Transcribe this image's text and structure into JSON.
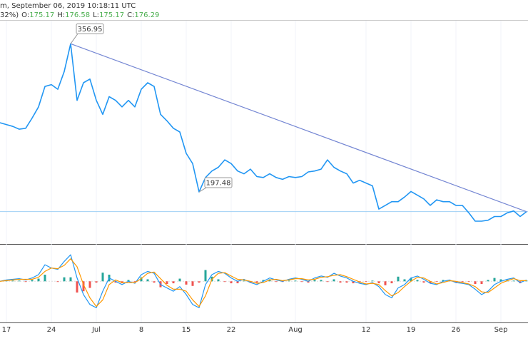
{
  "chart_data": {
    "type": "line",
    "header": {
      "line1": "m, September 06, 2019 10:18:11 UTC",
      "line2_prefix": "32%)",
      "ohlc": [
        {
          "label": "O:",
          "value": "175.17"
        },
        {
          "label": "H:",
          "value": "176.58"
        },
        {
          "label": "L:",
          "value": "175.17"
        },
        {
          "label": "C:",
          "value": "176.29"
        }
      ],
      "ohlc_color": "#4caf50"
    },
    "categories": [
      null,
      "17",
      null,
      null,
      null,
      null,
      null,
      null,
      "24",
      null,
      null,
      null,
      null,
      null,
      null,
      "Jul",
      null,
      null,
      null,
      null,
      null,
      null,
      "8",
      null,
      null,
      null,
      null,
      null,
      null,
      "15",
      null,
      null,
      null,
      null,
      null,
      null,
      "22",
      null,
      null,
      null,
      null,
      null,
      null,
      null,
      null,
      null,
      "Aug",
      null,
      null,
      null,
      null,
      null,
      null,
      null,
      null,
      null,
      null,
      "12",
      null,
      null,
      null,
      null,
      null,
      null,
      "19",
      null,
      null,
      null,
      null,
      null,
      null,
      "26",
      null,
      null,
      null,
      null,
      null,
      null,
      "Sep",
      null,
      null,
      null,
      null
    ],
    "series": [
      {
        "color": "#2196f3",
        "values": [
          272,
          270,
          268,
          265,
          266,
          277,
          289,
          311,
          313,
          308,
          327,
          356.95,
          296,
          315,
          319,
          296,
          281,
          300,
          296,
          289,
          296,
          289,
          308,
          315,
          311,
          281,
          274,
          266,
          262,
          239,
          228,
          197.48,
          213,
          220,
          224,
          232,
          228,
          220,
          217,
          222,
          214,
          213,
          217,
          213,
          211,
          214,
          213,
          214,
          219,
          220,
          222,
          232,
          224,
          220,
          217,
          207,
          210,
          207,
          204,
          179,
          183,
          187,
          187,
          192,
          198,
          194,
          190,
          183,
          189,
          187,
          187,
          183,
          183,
          175,
          166,
          166,
          167,
          171,
          171,
          175,
          177,
          171,
          176.29
        ],
        "value_labels": [
          null,
          null,
          null,
          null,
          null,
          null,
          null,
          null,
          null,
          null,
          null,
          "356.95",
          null,
          null,
          null,
          null,
          null,
          null,
          null,
          null,
          null,
          null,
          null,
          null,
          null,
          null,
          null,
          null,
          null,
          null,
          null,
          "197.48",
          null,
          null,
          null,
          null,
          null,
          null,
          null,
          null,
          null,
          null,
          null,
          null,
          null,
          null,
          null,
          null,
          null,
          null,
          null,
          null,
          null,
          null,
          null,
          null,
          null,
          null,
          null,
          null,
          null,
          null,
          null,
          null,
          null,
          null,
          null,
          null,
          null,
          null,
          null,
          null,
          null,
          null,
          null,
          null,
          null,
          null,
          null,
          null,
          null,
          null,
          null
        ]
      }
    ],
    "ylim": [
      143,
      381
    ],
    "trendline_color": "#7486d3",
    "last_price_line_color": "#9fd0f5",
    "label_color": "#e040fb",
    "indicator": {
      "ylim": [
        -60,
        52
      ],
      "macd": {
        "color": "#2196f3",
        "values": [
          0,
          2,
          3,
          4,
          2,
          5,
          10,
          25,
          20,
          18,
          30,
          40,
          5,
          -20,
          -35,
          -40,
          -15,
          5,
          0,
          -5,
          0,
          -3,
          10,
          15,
          12,
          -5,
          -10,
          -15,
          -8,
          -20,
          -35,
          -40,
          -5,
          10,
          15,
          12,
          5,
          0,
          3,
          -2,
          -5,
          0,
          5,
          2,
          0,
          3,
          5,
          3,
          0,
          5,
          8,
          6,
          12,
          8,
          5,
          0,
          -3,
          -5,
          -2,
          -8,
          -20,
          -25,
          -10,
          -5,
          5,
          8,
          3,
          -3,
          -5,
          0,
          2,
          -2,
          -3,
          -5,
          -12,
          -20,
          -15,
          -5,
          0,
          3,
          5,
          -2,
          2
        ]
      },
      "signal": {
        "color": "#ff9800",
        "values": [
          0,
          1,
          2,
          3,
          3,
          3,
          6,
          15,
          20,
          19,
          24,
          34,
          22,
          -5,
          -25,
          -38,
          -28,
          -5,
          2,
          -2,
          -2,
          -2,
          4,
          12,
          14,
          4,
          -6,
          -12,
          -12,
          -15,
          -28,
          -38,
          -22,
          3,
          12,
          13,
          8,
          3,
          2,
          0,
          -3,
          -2,
          2,
          3,
          1,
          2,
          4,
          4,
          2,
          3,
          6,
          7,
          9,
          10,
          7,
          3,
          -1,
          -4,
          -3,
          -5,
          -14,
          -22,
          -17,
          -8,
          0,
          6,
          5,
          0,
          -4,
          -2,
          1,
          0,
          -2,
          -4,
          -8,
          -16,
          -17,
          -10,
          -3,
          1,
          4,
          1,
          1
        ]
      },
      "histogram": {
        "color": "#26a69a",
        "negative_color": "#ef5350",
        "values": [
          0,
          1,
          1,
          1,
          -1,
          2,
          4,
          10,
          0,
          -1,
          6,
          6,
          -17,
          -15,
          -10,
          -2,
          13,
          10,
          -2,
          -3,
          2,
          -1,
          6,
          3,
          -2,
          -9,
          -4,
          -3,
          4,
          -5,
          -7,
          -2,
          17,
          7,
          3,
          -1,
          -3,
          -3,
          1,
          -2,
          -2,
          2,
          3,
          -1,
          -1,
          1,
          1,
          -1,
          -2,
          2,
          2,
          -1,
          3,
          -2,
          -2,
          -3,
          -2,
          -1,
          1,
          -3,
          -6,
          -3,
          7,
          3,
          5,
          2,
          -2,
          -3,
          -1,
          2,
          1,
          -2,
          -1,
          -1,
          -4,
          -4,
          2,
          5,
          3,
          2,
          1,
          -3,
          1
        ]
      }
    }
  }
}
